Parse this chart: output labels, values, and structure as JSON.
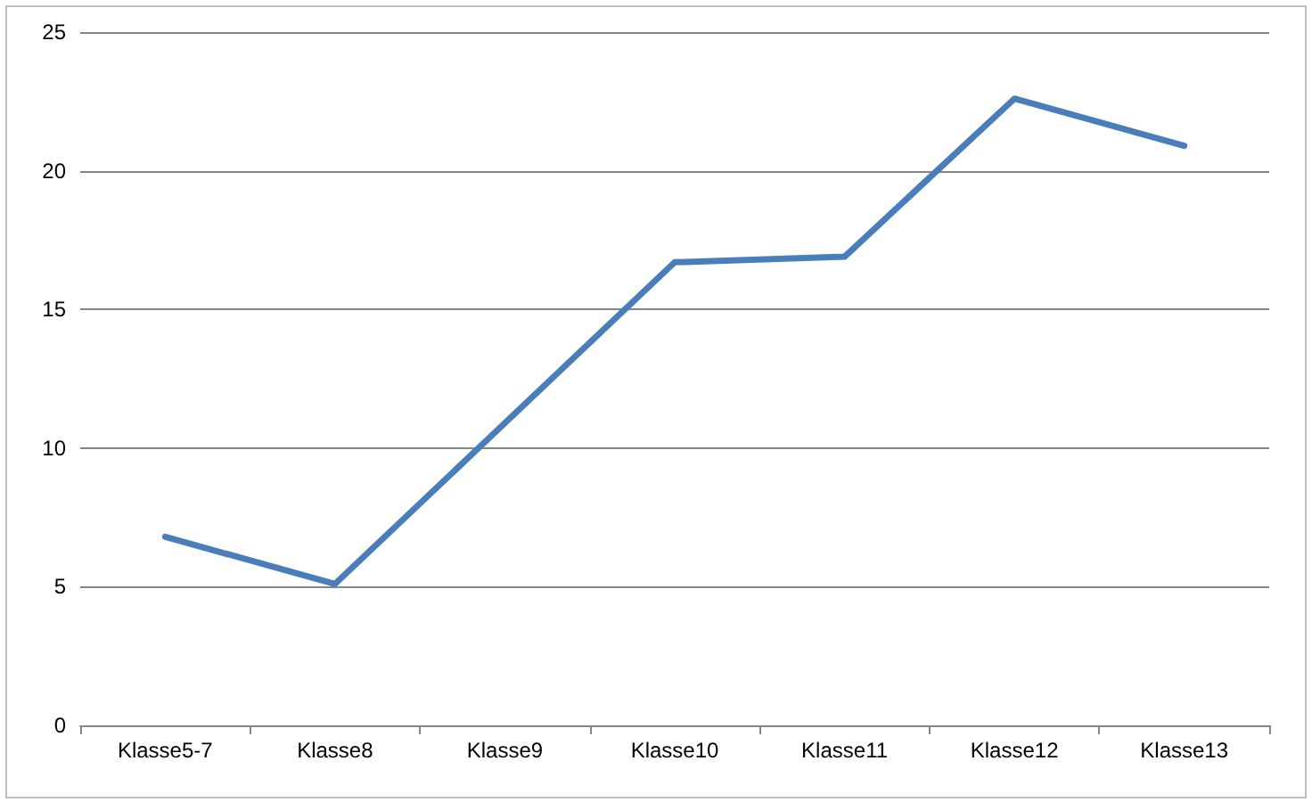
{
  "chart_data": {
    "type": "line",
    "categories": [
      "Klasse5-7",
      "Klasse8",
      "Klasse9",
      "Klasse10",
      "Klasse11",
      "Klasse12",
      "Klasse13"
    ],
    "series": [
      {
        "color": "#4a7ebb",
        "values": [
          6.8,
          5.1,
          10.9,
          16.7,
          16.9,
          22.6,
          20.9
        ]
      }
    ],
    "ylim": [
      0,
      25
    ],
    "yticks": [
      0,
      5,
      10,
      15,
      20,
      25
    ],
    "grid": "y",
    "marker": "none",
    "line_style": "solid"
  }
}
